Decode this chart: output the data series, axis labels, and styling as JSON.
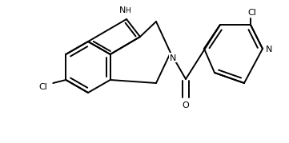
{
  "bg": "#ffffff",
  "lc": "#000000",
  "lw": 1.4,
  "fs": 7.5,
  "fig_w": 3.62,
  "fig_h": 1.8,
  "dpi": 100,
  "xlim": [
    0,
    362
  ],
  "ylim": [
    0,
    180
  ]
}
